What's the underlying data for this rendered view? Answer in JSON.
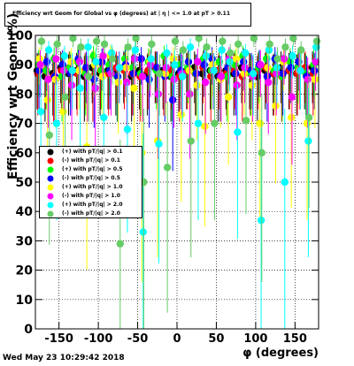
{
  "header": {
    "title": "Efficiency wrt Geom for Global vs φ (degrees) at | η | <= 1.0 at pT > 0.11"
  },
  "footer": {
    "timestamp": "Wed May 23 10:29:42 2018"
  },
  "chart_data": {
    "type": "scatter",
    "title": "Efficiency wrt Geom for Global vs φ (degrees) at | η | <= 1.0 at pT > 0.11",
    "xlabel": "φ (degrees)",
    "ylabel": "Efficiency wrt Geom (%)",
    "xlim": [
      -180,
      180
    ],
    "ylim": [
      0,
      100
    ],
    "xticks": [
      -150,
      -100,
      -50,
      0,
      50,
      100,
      150
    ],
    "yticks": [
      0,
      10,
      20,
      30,
      40,
      50,
      60,
      70,
      80,
      90,
      100
    ],
    "grid": true,
    "legend_position": "middle-left",
    "series": [
      {
        "name": "(+) with pT/|q| > 0.1",
        "color": "#000000",
        "marker": "circle",
        "x": [
          -175,
          -165,
          -155,
          -145,
          -135,
          -125,
          -115,
          -105,
          -95,
          -85,
          -75,
          -65,
          -55,
          -45,
          -35,
          -25,
          -15,
          -5,
          5,
          15,
          25,
          35,
          45,
          55,
          65,
          75,
          85,
          95,
          105,
          115,
          125,
          135,
          145,
          155,
          165,
          175
        ],
        "y": [
          88,
          86,
          87,
          89,
          87,
          88,
          86,
          89,
          87,
          88,
          87,
          89,
          86,
          88,
          87,
          89,
          88,
          86,
          87,
          88,
          89,
          87,
          88,
          86,
          88,
          87,
          89,
          88,
          86,
          88,
          87,
          89,
          88,
          87,
          88,
          89
        ]
      },
      {
        "name": "(-) with pT/|q| > 0.1",
        "color": "#ff0000",
        "marker": "circle",
        "x": [
          -175,
          -165,
          -155,
          -145,
          -135,
          -125,
          -115,
          -105,
          -95,
          -85,
          -75,
          -65,
          -55,
          -45,
          -35,
          -25,
          -15,
          -5,
          5,
          15,
          25,
          35,
          45,
          55,
          65,
          75,
          85,
          95,
          105,
          115,
          125,
          135,
          145,
          155,
          165,
          175
        ],
        "y": [
          87,
          88,
          86,
          88,
          89,
          87,
          88,
          86,
          88,
          87,
          89,
          88,
          87,
          86,
          88,
          89,
          87,
          88,
          86,
          88,
          87,
          89,
          86,
          88,
          87,
          88,
          86,
          87,
          88,
          89,
          87,
          86,
          88,
          87,
          89,
          87
        ]
      },
      {
        "name": "(+) with pT/|q| > 0.5",
        "color": "#00ff00",
        "marker": "circle",
        "x": [
          -175,
          -165,
          -155,
          -145,
          -135,
          -125,
          -115,
          -105,
          -95,
          -85,
          -75,
          -65,
          -55,
          -45,
          -35,
          -25,
          -15,
          -5,
          5,
          15,
          25,
          35,
          45,
          55,
          65,
          75,
          85,
          95,
          105,
          115,
          125,
          135,
          145,
          155,
          165,
          175
        ],
        "y": [
          90,
          88,
          92,
          86,
          89,
          91,
          87,
          93,
          88,
          90,
          86,
          92,
          89,
          87,
          91,
          88,
          93,
          86,
          90,
          89,
          87,
          92,
          88,
          91,
          86,
          90,
          93,
          87,
          89,
          92,
          88,
          86,
          91,
          89,
          87,
          90
        ]
      },
      {
        "name": "(-) with pT/|q| > 0.5",
        "color": "#0000ff",
        "marker": "circle",
        "x": [
          -175,
          -165,
          -155,
          -145,
          -135,
          -125,
          -115,
          -105,
          -95,
          -85,
          -75,
          -65,
          -55,
          -45,
          -35,
          -25,
          -15,
          -5,
          5,
          15,
          25,
          35,
          45,
          55,
          65,
          75,
          85,
          95,
          105,
          115,
          125,
          135,
          145,
          155,
          165,
          175
        ],
        "y": [
          88,
          91,
          86,
          90,
          87,
          92,
          89,
          85,
          91,
          88,
          86,
          90,
          87,
          92,
          85,
          89,
          86,
          78,
          88,
          91,
          87,
          90,
          92,
          86,
          89,
          87,
          91,
          88,
          90,
          86,
          92,
          87,
          89,
          91,
          86,
          88
        ]
      },
      {
        "name": "(+) with pT/|q| > 1.0",
        "color": "#ffff00",
        "marker": "circle",
        "x": [
          -175,
          -165,
          -155,
          -145,
          -135,
          -125,
          -115,
          -105,
          -95,
          -85,
          -75,
          -65,
          -55,
          -45,
          -35,
          -25,
          -15,
          -5,
          5,
          15,
          25,
          35,
          45,
          55,
          65,
          75,
          85,
          95,
          105,
          115,
          125,
          135,
          145,
          155,
          165,
          175
        ],
        "y": [
          92,
          78,
          85,
          74,
          91,
          88,
          62,
          90,
          86,
          93,
          84,
          89,
          82,
          60,
          91,
          64,
          87,
          92,
          73,
          88,
          83,
          69,
          90,
          85,
          79,
          92,
          87,
          83,
          70,
          89,
          76,
          91,
          72,
          88,
          70,
          85
        ]
      },
      {
        "name": "(-) with pT/|q| > 1.0",
        "color": "#ff00ff",
        "marker": "circle",
        "x": [
          -175,
          -165,
          -155,
          -145,
          -135,
          -125,
          -115,
          -105,
          -95,
          -85,
          -75,
          -65,
          -55,
          -45,
          -35,
          -25,
          -15,
          -5,
          5,
          15,
          25,
          35,
          45,
          55,
          65,
          75,
          85,
          95,
          105,
          115,
          125,
          135,
          145,
          155,
          165,
          175
        ],
        "y": [
          90,
          85,
          92,
          88,
          83,
          91,
          86,
          82,
          93,
          87,
          89,
          84,
          92,
          86,
          90,
          80,
          89,
          85,
          87,
          80,
          91,
          84,
          88,
          86,
          92,
          83,
          89,
          86,
          90,
          84,
          87,
          92,
          79,
          88,
          85,
          91
        ]
      },
      {
        "name": "(+) with pT/|q| > 2.0",
        "color": "#00ffff",
        "marker": "circle",
        "x": [
          -175,
          -165,
          -155,
          -145,
          -135,
          -125,
          -115,
          -105,
          -95,
          -85,
          -75,
          -65,
          -55,
          -45,
          -35,
          -25,
          -15,
          -5,
          5,
          15,
          25,
          35,
          45,
          55,
          65,
          75,
          85,
          95,
          105,
          115,
          125,
          135,
          145,
          155,
          165,
          175
        ],
        "y": [
          74,
          95,
          70,
          93,
          88,
          82,
          96,
          91,
          72,
          94,
          89,
          68,
          95,
          33,
          92,
          63,
          94,
          90,
          86,
          96,
          70,
          93,
          88,
          95,
          91,
          67,
          94,
          87,
          37,
          95,
          89,
          50,
          93,
          88,
          64,
          96
        ]
      },
      {
        "name": "(-) with pT/|q| > 2.0",
        "color": "#66cc66",
        "marker": "circle",
        "x": [
          -175,
          -165,
          -155,
          -145,
          -135,
          -125,
          -115,
          -105,
          -95,
          -85,
          -75,
          -65,
          -55,
          -45,
          -35,
          -25,
          -15,
          -5,
          5,
          15,
          25,
          35,
          45,
          55,
          65,
          75,
          85,
          95,
          105,
          115,
          125,
          135,
          145,
          155,
          165,
          175
        ],
        "y": [
          98,
          66,
          97,
          79,
          99,
          96,
          86,
          98,
          97,
          92,
          29,
          96,
          99,
          50,
          97,
          87,
          55,
          98,
          95,
          64,
          99,
          96,
          70,
          98,
          94,
          97,
          71,
          99,
          60,
          97,
          92,
          96,
          99,
          95,
          72,
          98
        ]
      }
    ]
  }
}
